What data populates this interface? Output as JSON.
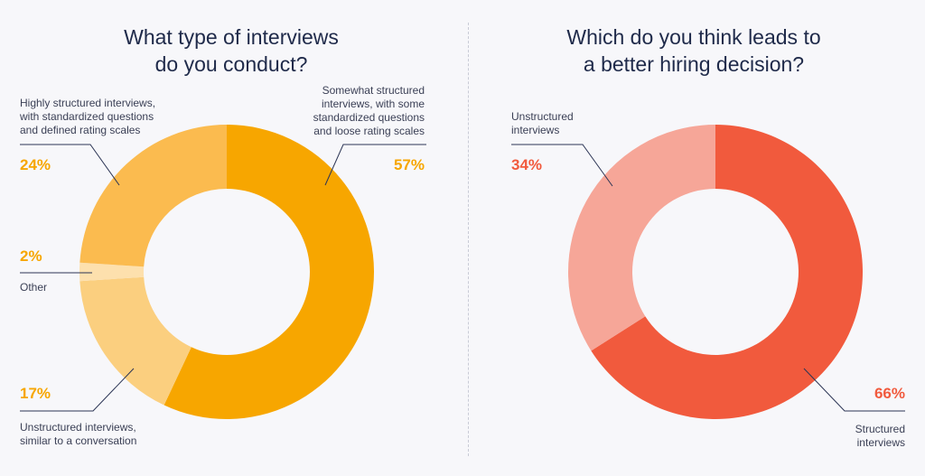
{
  "chart_data": [
    {
      "type": "pie",
      "title": "What type of interviews do you conduct?",
      "title_lines": [
        "What type of interviews",
        "do you conduct?"
      ],
      "slices": [
        {
          "label": "Somewhat structured interviews, with some standardized questions and loose rating scales",
          "value": 57,
          "pct_label": "57%",
          "color": "#f7a600"
        },
        {
          "label": "Unstructured interviews, similar to a conversation",
          "value": 17,
          "pct_label": "17%",
          "color": "#fbcf7f"
        },
        {
          "label": "Other",
          "value": 2,
          "pct_label": "2%",
          "color": "#fde0ad"
        },
        {
          "label": "Highly structured interviews, with standardized questions and defined rating scales",
          "value": 24,
          "pct_label": "24%",
          "color": "#fbbb4f"
        }
      ],
      "label_lines": {
        "somewhat": [
          "Somewhat structured",
          "interviews, with some",
          "standardized questions",
          "and loose rating scales"
        ],
        "highly": [
          "Highly structured interviews,",
          "with standardized questions",
          "and defined rating scales"
        ],
        "unstructured": [
          "Unstructured interviews,",
          "similar to a conversation"
        ],
        "other": [
          "Other"
        ]
      }
    },
    {
      "type": "pie",
      "title": "Which do you think leads to a better hiring decision?",
      "title_lines": [
        "Which do you think leads to",
        "a better hiring decision?"
      ],
      "slices": [
        {
          "label": "Structured interviews",
          "value": 66,
          "pct_label": "66%",
          "color": "#f15a3d"
        },
        {
          "label": "Unstructured interviews",
          "value": 34,
          "pct_label": "34%",
          "color": "#f6a698"
        }
      ],
      "label_lines": {
        "structured": [
          "Structured",
          "interviews"
        ],
        "unstructured": [
          "Unstructured",
          "interviews"
        ]
      }
    }
  ]
}
